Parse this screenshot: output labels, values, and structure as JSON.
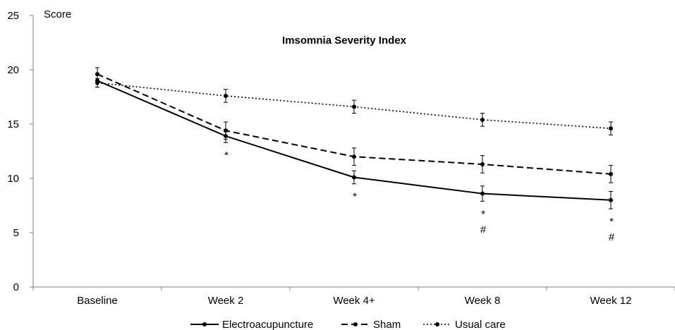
{
  "chart_data": {
    "type": "line",
    "title": "Imsomnia Severity Index",
    "ylabel": "Score",
    "xlabel": "",
    "ylim": [
      0,
      25
    ],
    "yticks": [
      0,
      5,
      10,
      15,
      20,
      25
    ],
    "categories": [
      "Baseline",
      "Week 2",
      "Week 4+",
      "Week 8",
      "Week 12"
    ],
    "grid": false,
    "legend": "bottom",
    "series": [
      {
        "name": "Electroacupuncture",
        "line_style": "solid",
        "values": [
          19.0,
          13.9,
          10.1,
          8.6,
          8.0
        ],
        "error": [
          0.6,
          0.6,
          0.6,
          0.7,
          0.8
        ]
      },
      {
        "name": "Sham",
        "line_style": "dashed",
        "values": [
          19.6,
          14.4,
          12.0,
          11.3,
          10.4
        ],
        "error": [
          0.6,
          0.8,
          0.8,
          0.8,
          0.8
        ]
      },
      {
        "name": "Usual care",
        "line_style": "dotted",
        "values": [
          18.8,
          17.6,
          16.6,
          15.4,
          14.6
        ],
        "error": [
          0.4,
          0.6,
          0.6,
          0.6,
          0.6
        ]
      }
    ],
    "annotations": [
      {
        "category": "Week 2",
        "lines": [
          "*"
        ]
      },
      {
        "category": "Week 4+",
        "lines": [
          "*"
        ]
      },
      {
        "category": "Week 8",
        "lines": [
          "*",
          "#"
        ]
      },
      {
        "category": "Week 12",
        "lines": [
          "*",
          "#"
        ]
      }
    ],
    "colors": {
      "line": "#000000",
      "axis": "#7f7f7f"
    }
  }
}
